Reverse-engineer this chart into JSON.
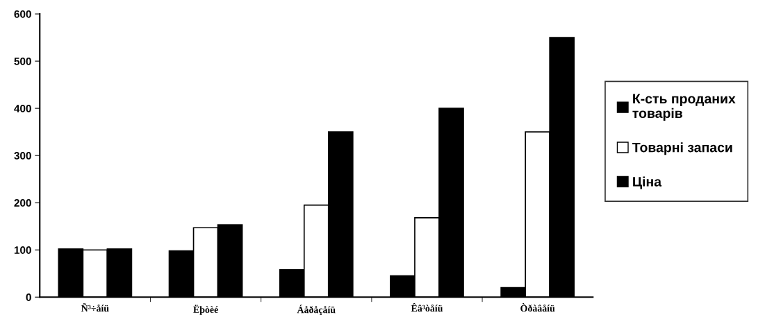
{
  "chart_data": {
    "type": "bar",
    "categories": [
      "Ñ³÷åíü",
      "Ëþòèé",
      "Áåðåçåíü",
      "Êâ³òåíü",
      "Òðàâåíü"
    ],
    "series": [
      {
        "name": "К-сть проданих\nтоварів",
        "color": "#000000",
        "values": [
          102,
          98,
          58,
          45,
          20
        ]
      },
      {
        "name": "Товарні запаси",
        "color": "#ffffff",
        "values": [
          100,
          147,
          195,
          168,
          350
        ]
      },
      {
        "name": "Ціна",
        "color": "#000000",
        "values": [
          102,
          153,
          350,
          400,
          550
        ]
      }
    ],
    "ylim": [
      0,
      600
    ],
    "yticks": [
      0,
      100,
      200,
      300,
      400,
      500,
      600
    ],
    "grid": false,
    "legend": "right"
  }
}
